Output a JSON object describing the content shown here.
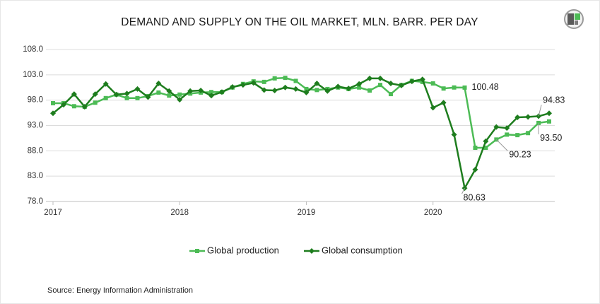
{
  "chart_data": {
    "type": "line",
    "title": "DEMAND AND SUPPLY ON THE OIL MARKET, MLN. BARR. PER DAY",
    "source": "Source: Energy Information Administration",
    "categories": [
      "2017",
      null,
      null,
      null,
      null,
      null,
      null,
      null,
      null,
      null,
      null,
      null,
      "2018",
      null,
      null,
      null,
      null,
      null,
      null,
      null,
      null,
      null,
      null,
      null,
      "2019",
      null,
      null,
      null,
      null,
      null,
      null,
      null,
      null,
      null,
      null,
      null,
      "2020",
      null,
      null,
      null,
      null,
      null,
      null,
      null,
      null,
      null,
      null,
      null
    ],
    "series": [
      {
        "name": "Global production",
        "color": "#4cbb55",
        "marker": "square",
        "values": [
          97.4,
          97.4,
          96.8,
          96.7,
          97.5,
          98.4,
          99.1,
          98.4,
          98.4,
          98.8,
          99.5,
          98.9,
          99.1,
          99.3,
          99.5,
          99.6,
          99.6,
          100.5,
          101.2,
          101.7,
          101.6,
          102.3,
          102.4,
          101.8,
          100.2,
          100.0,
          100.2,
          100.5,
          100.2,
          100.5,
          99.9,
          101.0,
          99.2,
          101.0,
          101.8,
          101.6,
          101.3,
          100.3,
          100.5,
          100.48,
          88.6,
          88.6,
          90.23,
          91.2,
          91.1,
          91.5,
          93.5,
          93.8
        ]
      },
      {
        "name": "Global consumption",
        "color": "#1e7d1e",
        "marker": "diamond",
        "values": [
          95.4,
          97.1,
          99.2,
          96.7,
          99.2,
          101.2,
          99.1,
          99.3,
          100.2,
          98.6,
          101.3,
          99.8,
          98.1,
          99.8,
          99.9,
          98.9,
          99.6,
          100.6,
          101.0,
          101.4,
          100.0,
          99.9,
          100.5,
          100.2,
          99.5,
          101.3,
          99.8,
          100.7,
          100.3,
          101.2,
          102.3,
          102.3,
          101.3,
          100.9,
          101.7,
          102.1,
          96.5,
          97.5,
          91.2,
          80.63,
          84.3,
          89.9,
          92.7,
          92.5,
          94.6,
          94.7,
          94.83,
          95.4
        ]
      }
    ],
    "data_labels": [
      {
        "series": 0,
        "index": 39,
        "label": "100.48"
      },
      {
        "series": 1,
        "index": 39,
        "label": "80.63"
      },
      {
        "series": 0,
        "index": 42,
        "label": "90.23"
      },
      {
        "series": 1,
        "index": 46,
        "label": "94.83"
      },
      {
        "series": 0,
        "index": 46,
        "label": "93.50"
      }
    ],
    "ylim": [
      78,
      108
    ],
    "yticks": [
      {
        "value": 78,
        "label": "78.0"
      },
      {
        "value": 83,
        "label": "83.0"
      },
      {
        "value": 88,
        "label": "88.0"
      },
      {
        "value": 93,
        "label": "93.0"
      },
      {
        "value": 98,
        "label": "98.0"
      },
      {
        "value": 103,
        "label": "103.0"
      },
      {
        "value": 108,
        "label": "108.0"
      }
    ],
    "grid": true,
    "legend": "bottom"
  }
}
